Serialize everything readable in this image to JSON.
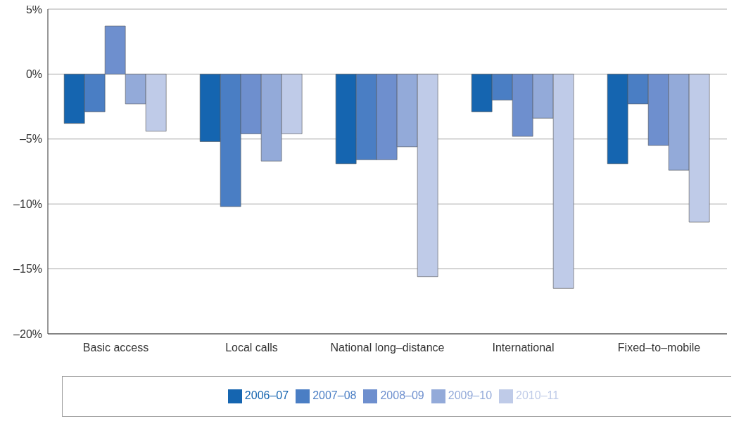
{
  "chart_data": {
    "type": "bar",
    "categories": [
      "Basic access",
      "Local calls",
      "National long–distance",
      "International",
      "Fixed–to–mobile"
    ],
    "series": [
      {
        "name": "2006–07",
        "color": "#1565b0",
        "values": [
          -3.8,
          -5.2,
          -6.9,
          -2.9,
          -6.9
        ]
      },
      {
        "name": "2007–08",
        "color": "#4a7ec4",
        "values": [
          -2.9,
          -10.2,
          -6.6,
          -2.0,
          -2.3
        ]
      },
      {
        "name": "2008–09",
        "color": "#6e8fce",
        "values": [
          3.7,
          -4.6,
          -6.6,
          -4.8,
          -5.5
        ]
      },
      {
        "name": "2009–10",
        "color": "#93aad9",
        "values": [
          -2.3,
          -6.7,
          -5.6,
          -3.4,
          -7.4
        ]
      },
      {
        "name": "2010–11",
        "color": "#bfcbe8",
        "values": [
          -4.4,
          -4.6,
          -15.6,
          -16.5,
          -11.4
        ]
      }
    ],
    "ylim": [
      -20,
      5
    ],
    "yticks": [
      {
        "value": 5,
        "label": "5%"
      },
      {
        "value": 0,
        "label": "0%"
      },
      {
        "value": -5,
        "label": "–5%"
      },
      {
        "value": -10,
        "label": "–10%"
      },
      {
        "value": -15,
        "label": "–15%"
      },
      {
        "value": -20,
        "label": "–20%"
      }
    ],
    "grid": "y",
    "legend": "bottom"
  }
}
